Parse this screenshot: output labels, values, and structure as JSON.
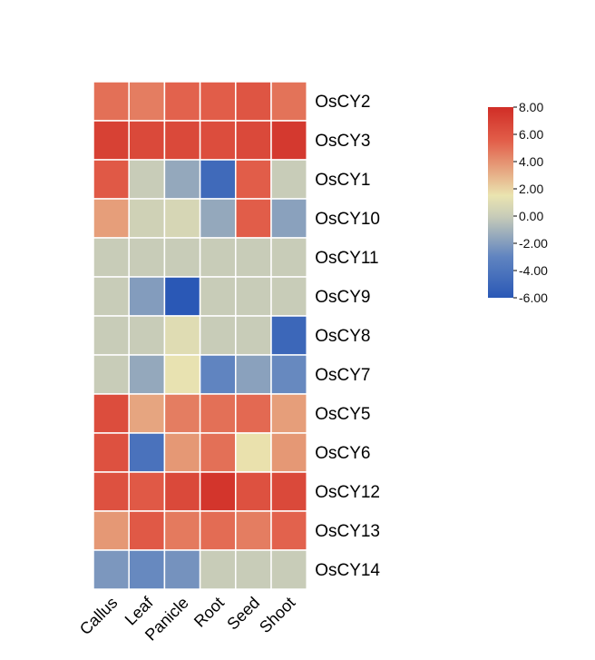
{
  "chart_data": {
    "type": "heatmap",
    "columns": [
      "Callus",
      "Leaf",
      "Panicle",
      "Root",
      "Seed",
      "Shoot"
    ],
    "rows": [
      "OsCY2",
      "OsCY3",
      "OsCY1",
      "OsCY10",
      "OsCY11",
      "OsCY9",
      "OsCY8",
      "OsCY7",
      "OsCY5",
      "OsCY6",
      "OsCY12",
      "OsCY13",
      "OsCY14"
    ],
    "values": [
      [
        5.0,
        4.6,
        5.4,
        5.6,
        6.0,
        4.9
      ],
      [
        7.0,
        6.6,
        6.6,
        6.4,
        6.6,
        7.4
      ],
      [
        5.8,
        0.0,
        -1.5,
        -4.8,
        5.6,
        0.0
      ],
      [
        3.6,
        0.3,
        0.6,
        -1.5,
        5.6,
        -1.8
      ],
      [
        0.0,
        0.0,
        0.0,
        0.0,
        0.0,
        0.0
      ],
      [
        0.0,
        -2.0,
        -6.0,
        0.0,
        0.0,
        0.0
      ],
      [
        0.0,
        0.0,
        1.0,
        0.0,
        0.0,
        -5.0
      ],
      [
        0.0,
        -1.5,
        1.4,
        -3.0,
        -1.8,
        -2.8
      ],
      [
        6.4,
        3.4,
        4.6,
        5.0,
        5.2,
        3.6
      ],
      [
        6.2,
        -4.2,
        3.8,
        5.0,
        1.6,
        3.8
      ],
      [
        6.2,
        5.8,
        6.6,
        7.6,
        6.2,
        6.6
      ],
      [
        3.8,
        5.8,
        4.7,
        5.1,
        4.6,
        5.4
      ],
      [
        -2.2,
        -2.8,
        -2.4,
        0.0,
        0.0,
        0.0
      ]
    ],
    "colorbar": {
      "min": -6.0,
      "max": 8.0,
      "ticks": [
        "8.00",
        "6.00",
        "4.00",
        "2.00",
        "0.00",
        "-2.00",
        "-4.00",
        "-6.00"
      ],
      "colors": [
        "#2a58b6",
        "#6084c0",
        "#c8ccb8",
        "#eae4b0",
        "#e25f4a",
        "#d02d26"
      ],
      "color_stops": [
        -6.0,
        -3.0,
        0.0,
        1.5,
        5.5,
        8.0
      ]
    },
    "grid": false
  }
}
